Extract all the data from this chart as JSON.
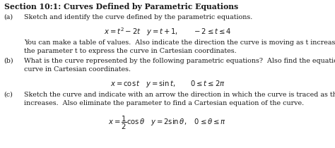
{
  "title": "Section 10:1: Curves Defined by Parametric Equations",
  "part_a_label": "(a)",
  "part_a_text": "Sketch and identify the curve defined by the parametric equations.",
  "part_a_eq": "$x = t^2 - 2t \\quad y = t+1, \\qquad -2 \\leq t \\leq 4$",
  "part_a_body1": "You can make a table of values.  Also indicate the direction the curve is moving as t increases.  Eliminate",
  "part_a_body2": "the parameter t to express the curve in Cartesian coordinates.",
  "part_b_label": "(b)",
  "part_b_text1": "What is the curve represented by the following parametric equations?  Also find the equation of the",
  "part_b_text2": "curve in Cartesian coordinates.",
  "part_b_eq": "$x = \\cos t \\quad y = \\sin t, \\qquad 0 \\leq t \\leq 2\\pi$",
  "part_c_label": "(c)",
  "part_c_text1": "Sketch the curve and indicate with an arrow the direction in which the curve is traced as the parameter",
  "part_c_text2": "increases.  Also eliminate the parameter to find a Cartesian equation of the curve.",
  "part_c_eq": "$x = \\dfrac{1}{2}\\cos\\theta \\quad y = 2\\sin\\theta, \\quad 0 \\leq \\theta \\leq \\pi$",
  "bg_color": "#ffffff",
  "text_color": "#1a1a1a",
  "font_size_title": 7.8,
  "font_size_body": 6.8,
  "font_size_eq": 7.2,
  "indent_label": 0.012,
  "indent_text": 0.072,
  "indent_body": 0.072
}
